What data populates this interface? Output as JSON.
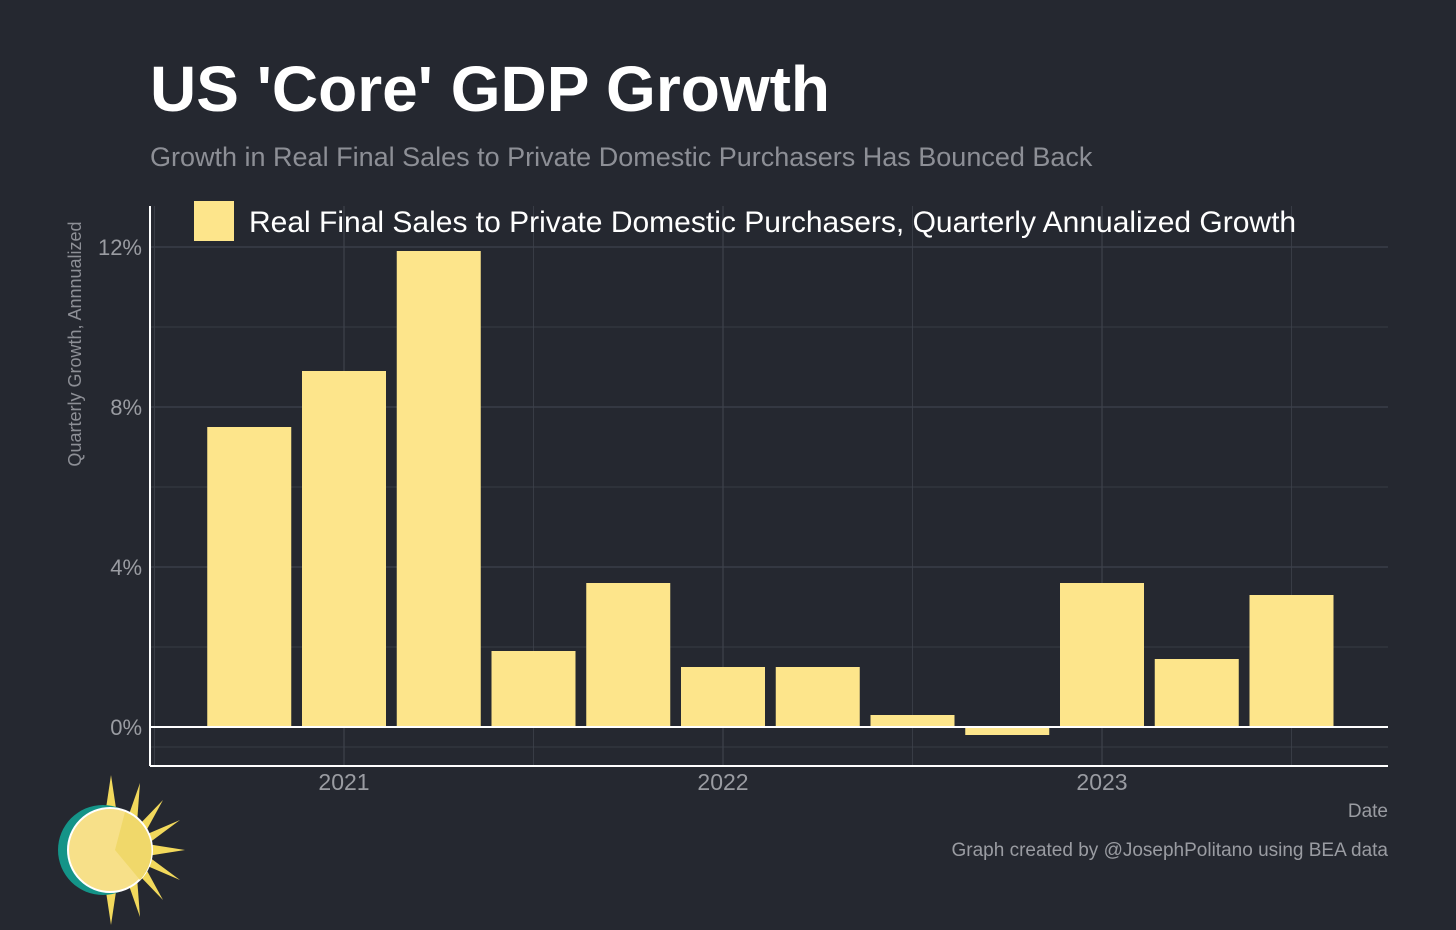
{
  "title": "US 'Core' GDP Growth",
  "subtitle": "Growth in Real Final Sales to Private Domestic Purchasers Has Bounced Back",
  "credit": "Graph created by @JosephPolitano using BEA data",
  "colors": {
    "background": "#252830",
    "bar": "#fde58b",
    "grid": "#3e424c",
    "axis": "#ffffff",
    "tick_text": "#9a9ca2"
  },
  "chart_data": {
    "type": "bar",
    "x": [
      "2020-10-01",
      "2021-01-01",
      "2021-04-01",
      "2021-07-01",
      "2021-10-01",
      "2022-01-01",
      "2022-04-01",
      "2022-07-01",
      "2022-10-01",
      "2023-01-01",
      "2023-04-01",
      "2023-07-01"
    ],
    "series": [
      {
        "name": "Real Final Sales to Private Domestic Purchasers, Quarterly Annualized Growth",
        "values": [
          7.5,
          8.9,
          11.9,
          1.9,
          3.6,
          1.5,
          1.5,
          0.3,
          -0.2,
          3.6,
          1.7,
          3.3
        ]
      }
    ],
    "xlabel": "Date",
    "ylabel": "Quarterly Growth, Annnualized",
    "xticks": [
      "2021",
      "2022",
      "2023"
    ],
    "yticks": [
      "0%",
      "4%",
      "8%",
      "12%"
    ],
    "ylim": [
      -1,
      13
    ],
    "grid": true,
    "legend_position": "top"
  }
}
